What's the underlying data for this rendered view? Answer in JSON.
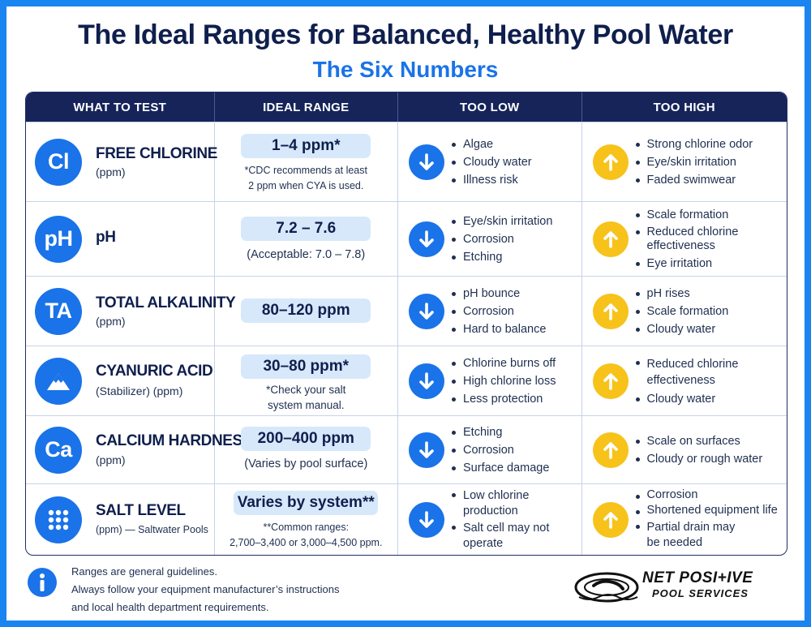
{
  "page": {
    "title": "The Ideal Ranges for Balanced, Healthy Pool Water",
    "subtitle": "The Six Numbers"
  },
  "colors": {
    "frame": "#1a84f0",
    "header_bg": "#16245a",
    "badge_blue": "#1a73e8",
    "arrow_up_yellow": "#f7c21a",
    "pill_bg": "#d7e8fb",
    "title_navy": "#0f1f4d"
  },
  "table": {
    "headers": [
      "WHAT TO TEST",
      "IDEAL RANGE",
      "TOO LOW",
      "TOO HIGH"
    ],
    "rows": [
      {
        "badge": "Cl",
        "name": "FREE CHLORINE",
        "unit": "(ppm)",
        "range": "1–4 ppm*",
        "note_lines": [
          "*CDC recommends at least",
          "2 ppm when CYA is used."
        ],
        "too_low": [
          "Algae",
          "Cloudy water",
          "Illness risk"
        ],
        "too_high": [
          "Strong chlorine odor",
          "Eye/skin irritation",
          "Faded swimwear"
        ]
      },
      {
        "badge": "pH",
        "name": "pH",
        "unit": "",
        "range": "7.2 – 7.6",
        "note_lines": [
          "(Acceptable: 7.0 – 7.8)"
        ],
        "too_low": [
          "Eye/skin irritation",
          "Corrosion",
          "Etching"
        ],
        "too_high": [
          "Scale formation",
          "Reduced chlorine effectiveness",
          "Eye irritation"
        ]
      },
      {
        "badge": "TA",
        "name": "TOTAL ALKALINITY",
        "unit": "(ppm)",
        "range": "80–120 ppm",
        "note_lines": [],
        "too_low": [
          "pH bounce",
          "Corrosion",
          "Hard to balance"
        ],
        "too_high": [
          "pH rises",
          "Scale formation",
          "Cloudy water"
        ]
      },
      {
        "badge_icon": "mountain-icon",
        "name": "CYANURIC ACID",
        "unit": "(Stabilizer) (ppm)",
        "range": "30–80 ppm*",
        "note_lines": [
          "*Check your salt",
          "system manual."
        ],
        "too_low": [
          "Chlorine burns off",
          "High chlorine loss",
          "Less protection"
        ],
        "too_high": [
          "Reduced chlorine effectiveness",
          "Cloudy water"
        ]
      },
      {
        "badge": "Ca",
        "name": "CALCIUM HARDNESS",
        "unit": "(ppm)",
        "range": "200–400 ppm",
        "note_lines": [
          "(Varies by pool surface)"
        ],
        "too_low": [
          "Etching",
          "Corrosion",
          "Surface damage"
        ],
        "too_high": [
          "Scale on surfaces",
          "Cloudy or rough water"
        ]
      },
      {
        "badge_icon": "dots-grid-icon",
        "name": "SALT LEVEL",
        "unit": "(ppm) — Saltwater Pools",
        "range": "Varies by system**",
        "note_lines": [
          "**Common ranges:",
          "2,700–3,400 or 3,000–4,500 ppm."
        ],
        "too_low": [
          "Low chlorine production",
          "Salt cell may not operate"
        ],
        "too_high": [
          "Corrosion",
          "Shortened equipment life",
          "Partial drain may be needed"
        ]
      }
    ]
  },
  "footer": {
    "icon": "info-icon",
    "lines": [
      "Ranges are general guidelines.",
      "Always follow your equipment manufacturer’s instructions",
      "and local health department requirements."
    ]
  },
  "logo": {
    "line1": "NET POSI+IVE",
    "line2": "POOL SERVICES",
    "icon": "pool-float-icon"
  }
}
